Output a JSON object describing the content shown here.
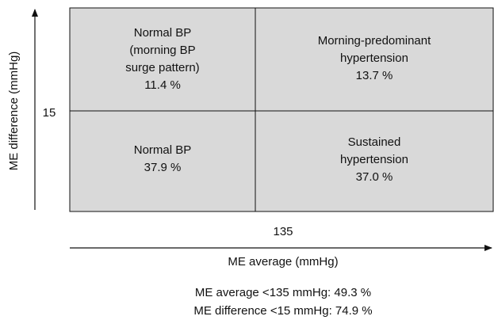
{
  "axes": {
    "y_label": "ME difference (mmHg)",
    "y_threshold": "15",
    "x_threshold": "135",
    "x_label": "ME average (mmHg)"
  },
  "quadrants": [
    {
      "lines": [
        "Normal BP",
        "(morning BP",
        "surge pattern)",
        "11.4 %"
      ]
    },
    {
      "lines": [
        "Morning-predominant",
        "hypertension",
        "13.7 %"
      ]
    },
    {
      "lines": [
        "Normal BP",
        "37.9 %"
      ]
    },
    {
      "lines": [
        "Sustained",
        "hypertension",
        "37.0 %"
      ]
    }
  ],
  "footnotes": [
    "ME average <135 mmHg: 49.3 %",
    "ME difference <15 mmHg: 74.9 %"
  ]
}
